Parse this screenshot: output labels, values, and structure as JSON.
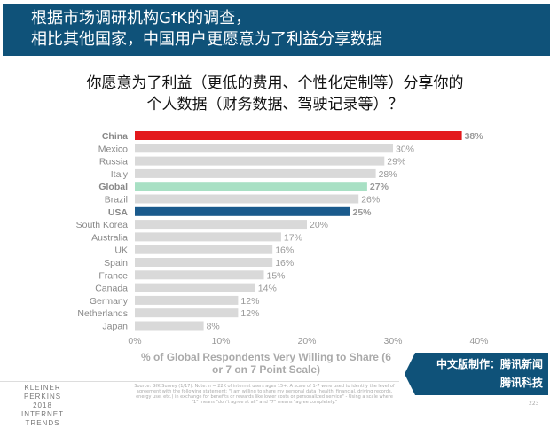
{
  "header": {
    "line1": "根据市场调研机构GfK的调查，",
    "line2": "相比其他国家，中国用户更愿意为了利益分享数据"
  },
  "question": {
    "line1": "你愿意为了利益（更低的费用、个性化定制等）分享你的",
    "line2": "个人数据（财务数据、驾驶记录等）？"
  },
  "chart_data": {
    "type": "bar",
    "orientation": "horizontal",
    "categories": [
      "China",
      "Mexico",
      "Russia",
      "Italy",
      "Global",
      "Brazil",
      "USA",
      "South Korea",
      "Australia",
      "UK",
      "Spain",
      "France",
      "Canada",
      "Germany",
      "Netherlands",
      "Japan"
    ],
    "values": [
      38,
      30,
      29,
      28,
      27,
      26,
      25,
      20,
      17,
      16,
      16,
      15,
      14,
      12,
      12,
      8
    ],
    "value_labels": [
      "38%",
      "30%",
      "29%",
      "28%",
      "27%",
      "26%",
      "25%",
      "20%",
      "17%",
      "16%",
      "16%",
      "15%",
      "14%",
      "12%",
      "12%",
      "8%"
    ],
    "highlight_colors": {
      "China": "#e3191c",
      "Global": "#a8e0c4",
      "USA": "#1a5a8c"
    },
    "default_color": "#d9d9d9",
    "xlim": [
      0,
      40
    ],
    "xticks": [
      "0%",
      "10%",
      "20%",
      "30%",
      "40%"
    ],
    "xlabel": "% of Global Respondents Very Willing to Share (6 or 7 on 7 Point Scale)"
  },
  "badge": {
    "line1": "中文版制作：腾讯新闻",
    "line2": "腾讯科技"
  },
  "footer": {
    "brand1": "KLEINER PERKINS",
    "brand2": "2018",
    "brand3": "INTERNET TRENDS",
    "source": "Source: GfK Survey (1/17). Note: n = 22K of internet users ages 15+. A scale of 1-7 were used to identify the level of agreement with the following statement: \"I am willing to share my personal data (health, financial, driving records, energy use, etc.) in exchange for benefits or rewards like lower costs or personalized service\" - Using a scale where \"1\" means \"don't agree at all\" and \"7\" means \"agree completely.\"",
    "page": "223"
  }
}
